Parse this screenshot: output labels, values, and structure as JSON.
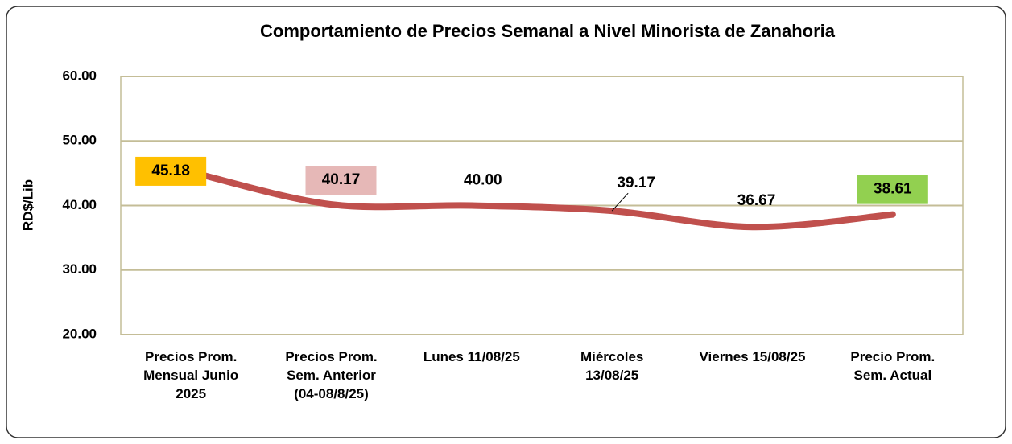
{
  "chart_data": {
    "type": "line",
    "title": "Comportamiento de Precios Semanal a Nivel Minorista de Zanahoria",
    "y_label": "RD$/Lib",
    "categories": [
      "Precios Prom.\nMensual Junio\n2025",
      "Precios Prom.\nSem. Anterior\n(04-08/8/25)",
      "Lunes  11/08/25",
      "Miércoles\n13/08/25",
      "Viernes 15/08/25",
      "Precio Prom.\nSem. Actual"
    ],
    "series": [
      {
        "name": "Zanahoria",
        "color": "#c0504d",
        "values": [
          45.18,
          40.17,
          40.0,
          39.17,
          36.67,
          38.61
        ],
        "value_labels": [
          "45.18",
          "40.17",
          "40.00",
          "39.17",
          "36.67",
          "38.61"
        ],
        "value_label_backgrounds": [
          "#ffc000",
          "#e6b8b7",
          null,
          null,
          null,
          "#92d050"
        ]
      }
    ],
    "ylim": [
      20,
      60
    ],
    "yticks": [
      {
        "value": 20,
        "label": "20.00"
      },
      {
        "value": 30,
        "label": "30.00"
      },
      {
        "value": 40,
        "label": "40.00"
      },
      {
        "value": 50,
        "label": "50.00"
      },
      {
        "value": 60,
        "label": "60.00"
      }
    ],
    "grid": true,
    "smooth": true
  }
}
